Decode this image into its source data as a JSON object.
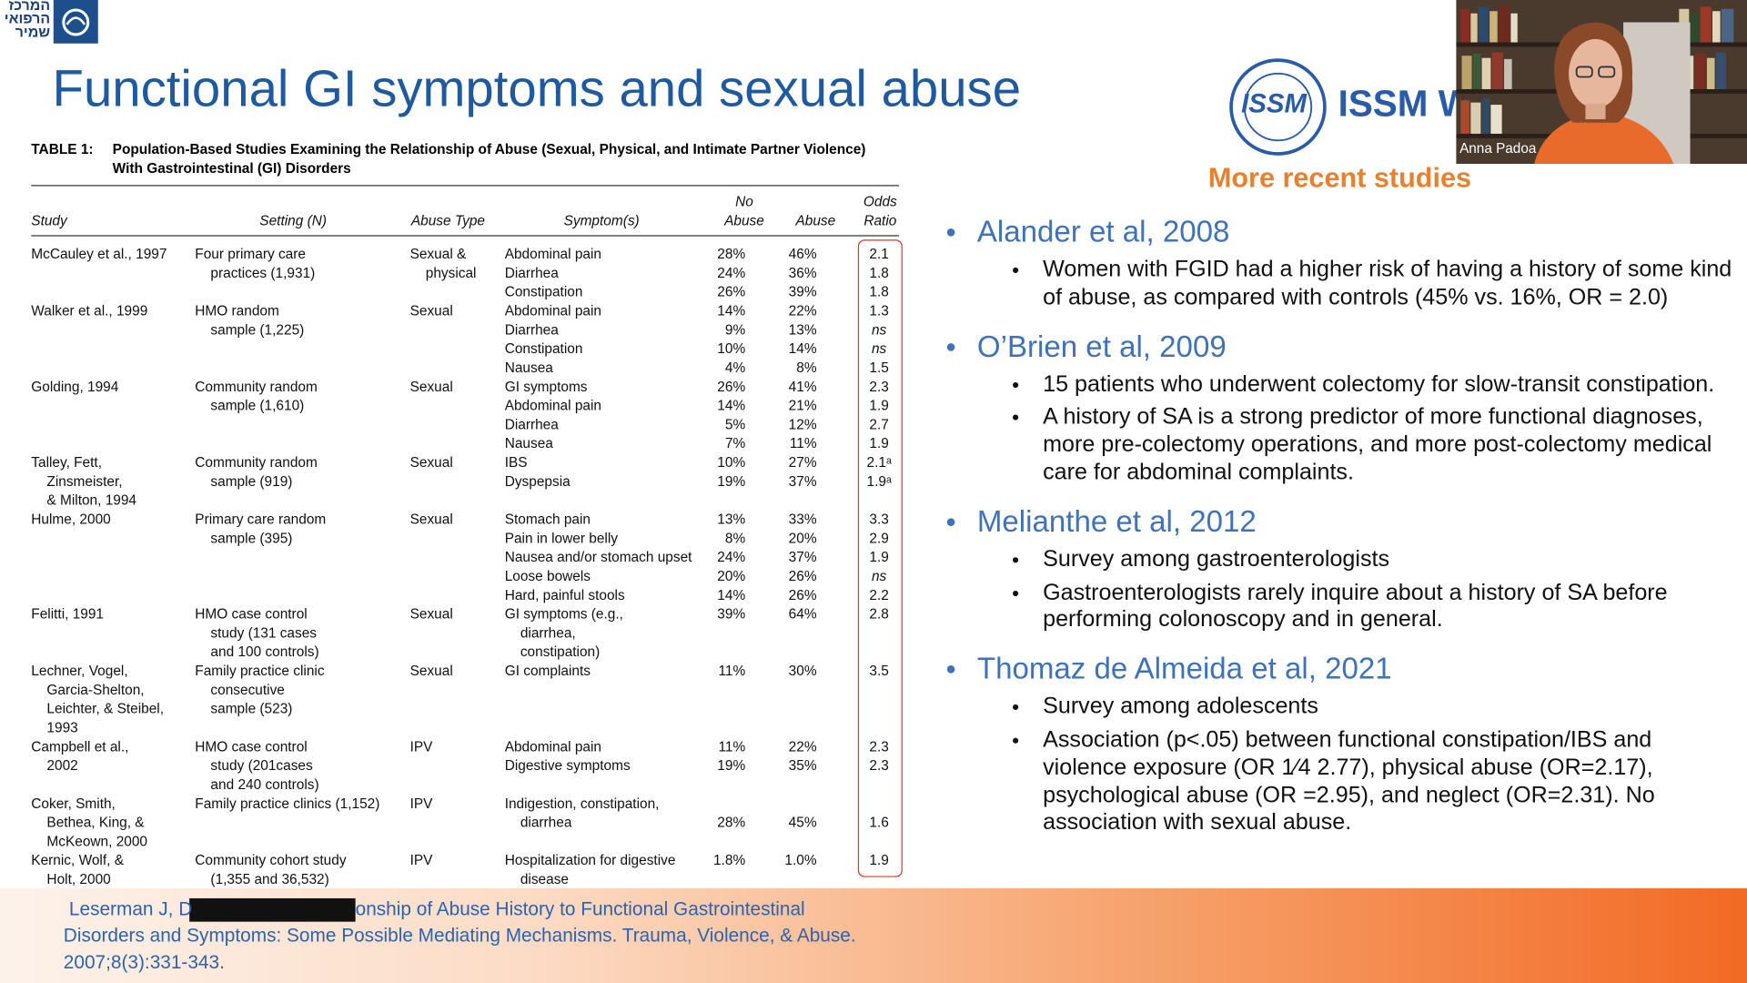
{
  "logo": {
    "text_lines": [
      "המרכז",
      "הרפואי",
      "שמיר"
    ]
  },
  "slide": {
    "title": "Functional GI symptoms and sexual abuse",
    "table": {
      "caption_label": "TABLE 1:",
      "caption_lines": [
        "Population-Based Studies Examining the Relationship of Abuse (Sexual, Physical, and Intimate Partner Violence)",
        "With Gastrointestinal (GI) Disorders"
      ],
      "columns": [
        [
          "Study"
        ],
        [
          "Setting (N)"
        ],
        [
          "Abuse Type"
        ],
        [
          "Symptom(s)"
        ],
        [
          "No",
          "Abuse"
        ],
        [
          "Abuse"
        ],
        [
          "Odds",
          "Ratio"
        ]
      ],
      "rows": [
        {
          "study": [
            "McCauley et al., 1997"
          ],
          "setting": [
            "Four primary care",
            "practices (1,931)"
          ],
          "abuse_type": [
            "Sexual &",
            "physical"
          ],
          "symptoms": [
            {
              "name": [
                "Abdominal pain"
              ],
              "no_abuse": "28%",
              "abuse": "46%",
              "odds_ratio": "2.1"
            },
            {
              "name": [
                "Diarrhea"
              ],
              "no_abuse": "24%",
              "abuse": "36%",
              "odds_ratio": "1.8"
            },
            {
              "name": [
                "Constipation"
              ],
              "no_abuse": "26%",
              "abuse": "39%",
              "odds_ratio": "1.8"
            }
          ]
        },
        {
          "study": [
            "Walker et al., 1999"
          ],
          "setting": [
            "HMO random",
            "sample (1,225)"
          ],
          "abuse_type": [
            "Sexual"
          ],
          "symptoms": [
            {
              "name": [
                "Abdominal pain"
              ],
              "no_abuse": "14%",
              "abuse": "22%",
              "odds_ratio": "1.3"
            },
            {
              "name": [
                "Diarrhea"
              ],
              "no_abuse": "9%",
              "abuse": "13%",
              "odds_ratio": "ns"
            },
            {
              "name": [
                "Constipation"
              ],
              "no_abuse": "10%",
              "abuse": "14%",
              "odds_ratio": "ns"
            },
            {
              "name": [
                "Nausea"
              ],
              "no_abuse": "4%",
              "abuse": "8%",
              "odds_ratio": "1.5"
            }
          ]
        },
        {
          "study": [
            "Golding, 1994"
          ],
          "setting": [
            "Community random",
            "sample (1,610)"
          ],
          "abuse_type": [
            "Sexual"
          ],
          "symptoms": [
            {
              "name": [
                "GI symptoms"
              ],
              "no_abuse": "26%",
              "abuse": "41%",
              "odds_ratio": "2.3"
            },
            {
              "name": [
                "Abdominal pain"
              ],
              "no_abuse": "14%",
              "abuse": "21%",
              "odds_ratio": "1.9"
            },
            {
              "name": [
                "Diarrhea"
              ],
              "no_abuse": "5%",
              "abuse": "12%",
              "odds_ratio": "2.7"
            },
            {
              "name": [
                "Nausea"
              ],
              "no_abuse": "7%",
              "abuse": "11%",
              "odds_ratio": "1.9"
            }
          ]
        },
        {
          "study": [
            "Talley, Fett,",
            "Zinsmeister,",
            "& Milton, 1994"
          ],
          "setting": [
            "Community random",
            "sample (919)"
          ],
          "abuse_type": [
            "Sexual"
          ],
          "symptoms": [
            {
              "name": [
                "IBS"
              ],
              "no_abuse": "10%",
              "abuse": "27%",
              "odds_ratio": "2.1ᵃ"
            },
            {
              "name": [
                "Dyspepsia"
              ],
              "no_abuse": "19%",
              "abuse": "37%",
              "odds_ratio": "1.9ᵃ"
            }
          ]
        },
        {
          "study": [
            "Hulme, 2000"
          ],
          "setting": [
            "Primary care random",
            "sample (395)"
          ],
          "abuse_type": [
            "Sexual"
          ],
          "symptoms": [
            {
              "name": [
                "Stomach pain"
              ],
              "no_abuse": "13%",
              "abuse": "33%",
              "odds_ratio": "3.3"
            },
            {
              "name": [
                "Pain in lower belly"
              ],
              "no_abuse": "8%",
              "abuse": "20%",
              "odds_ratio": "2.9"
            },
            {
              "name": [
                "Nausea and/or stomach upset"
              ],
              "no_abuse": "24%",
              "abuse": "37%",
              "odds_ratio": "1.9"
            },
            {
              "name": [
                "Loose bowels"
              ],
              "no_abuse": "20%",
              "abuse": "26%",
              "odds_ratio": "ns"
            },
            {
              "name": [
                "Hard, painful stools"
              ],
              "no_abuse": "14%",
              "abuse": "26%",
              "odds_ratio": "2.2"
            }
          ]
        },
        {
          "study": [
            "Felitti, 1991"
          ],
          "setting": [
            "HMO case control",
            "study (131 cases",
            "and 100 controls)"
          ],
          "abuse_type": [
            "Sexual"
          ],
          "symptoms": [
            {
              "name": [
                "GI symptoms (e.g.,",
                "diarrhea,",
                "constipation)"
              ],
              "no_abuse": "39%",
              "abuse": "64%",
              "odds_ratio": "2.8"
            }
          ]
        },
        {
          "study": [
            "Lechner, Vogel,",
            "Garcia-Shelton,",
            "Leichter, & Steibel,",
            "1993"
          ],
          "setting": [
            "Family practice clinic",
            "consecutive",
            "sample (523)"
          ],
          "abuse_type": [
            "Sexual"
          ],
          "symptoms": [
            {
              "name": [
                "GI complaints"
              ],
              "no_abuse": "11%",
              "abuse": "30%",
              "odds_ratio": "3.5"
            }
          ]
        },
        {
          "study": [
            "Campbell et al.,",
            "2002"
          ],
          "setting": [
            "HMO case control",
            "study (201cases",
            "and 240 controls)"
          ],
          "abuse_type": [
            "IPV"
          ],
          "symptoms": [
            {
              "name": [
                "Abdominal pain"
              ],
              "no_abuse": "11%",
              "abuse": "22%",
              "odds_ratio": "2.3"
            },
            {
              "name": [
                "Digestive symptoms"
              ],
              "no_abuse": "19%",
              "abuse": "35%",
              "odds_ratio": "2.3"
            }
          ]
        },
        {
          "study": [
            "Coker, Smith,",
            "Bethea, King, &",
            "McKeown, 2000"
          ],
          "setting": [
            "Family practice clinics  (1,152)"
          ],
          "abuse_type": [
            "IPV"
          ],
          "symptoms": [
            {
              "name": [
                "Indigestion, constipation,",
                "diarrhea"
              ],
              "no_abuse": "28%",
              "abuse": "45%",
              "odds_ratio": "1.6"
            }
          ]
        },
        {
          "study": [
            "Kernic, Wolf, &",
            "Holt, 2000"
          ],
          "setting": [
            "Community cohort study",
            "(1,355 and 36,532)"
          ],
          "abuse_type": [
            "IPV"
          ],
          "symptoms": [
            {
              "name": [
                "Hospitalization for digestive",
                "disease"
              ],
              "no_abuse": "1.8%",
              "abuse": "1.0%",
              "odds_ratio": "1.9"
            }
          ]
        }
      ]
    },
    "issm_emblem_text": "ISSM",
    "issm_logo_text": "ISSM W",
    "section_heading": "More recent studies",
    "studies": [
      {
        "heading": "Alander et al, 2008",
        "points": [
          "Women with FGID had a higher risk of having a history of some kind of abuse, as compared with controls (45% vs. 16%, OR = 2.0)"
        ]
      },
      {
        "heading": "O’Brien et al, 2009",
        "points": [
          "15 patients who underwent colectomy for slow-transit constipation.",
          "A history of SA is a strong predictor of more functional diagnoses, more pre-colectomy operations, and more post-colectomy medical care for abdominal complaints."
        ]
      },
      {
        "heading": "Melianthe et al, 2012",
        "points": [
          "Survey among gastroenterologists",
          "Gastroenterologists rarely inquire about a history of SA before performing colonoscopy and in general."
        ]
      },
      {
        "heading": "Thomaz de Almeida et al, 2021",
        "points": [
          "Survey among adolescents",
          "Association (p<.05) between functional constipation/IBS and violence exposure (OR 1⁄4 2.77), physical abuse (OR=2.17), psychological abuse (OR =2.95), and neglect (OR=2.31). No association with sexual abuse."
        ]
      }
    ],
    "citation": {
      "before_redaction": "Leserman J, D",
      "after_redaction": "onship of Abuse History to Functional Gastrointestinal",
      "lines": [
        "Disorders and Symptoms: Some Possible Mediating Mechanisms. Trauma, Violence, & Abuse.",
        "2007;8(3):331-343."
      ]
    }
  },
  "video": {
    "participant_name": "Anna Padoa"
  }
}
